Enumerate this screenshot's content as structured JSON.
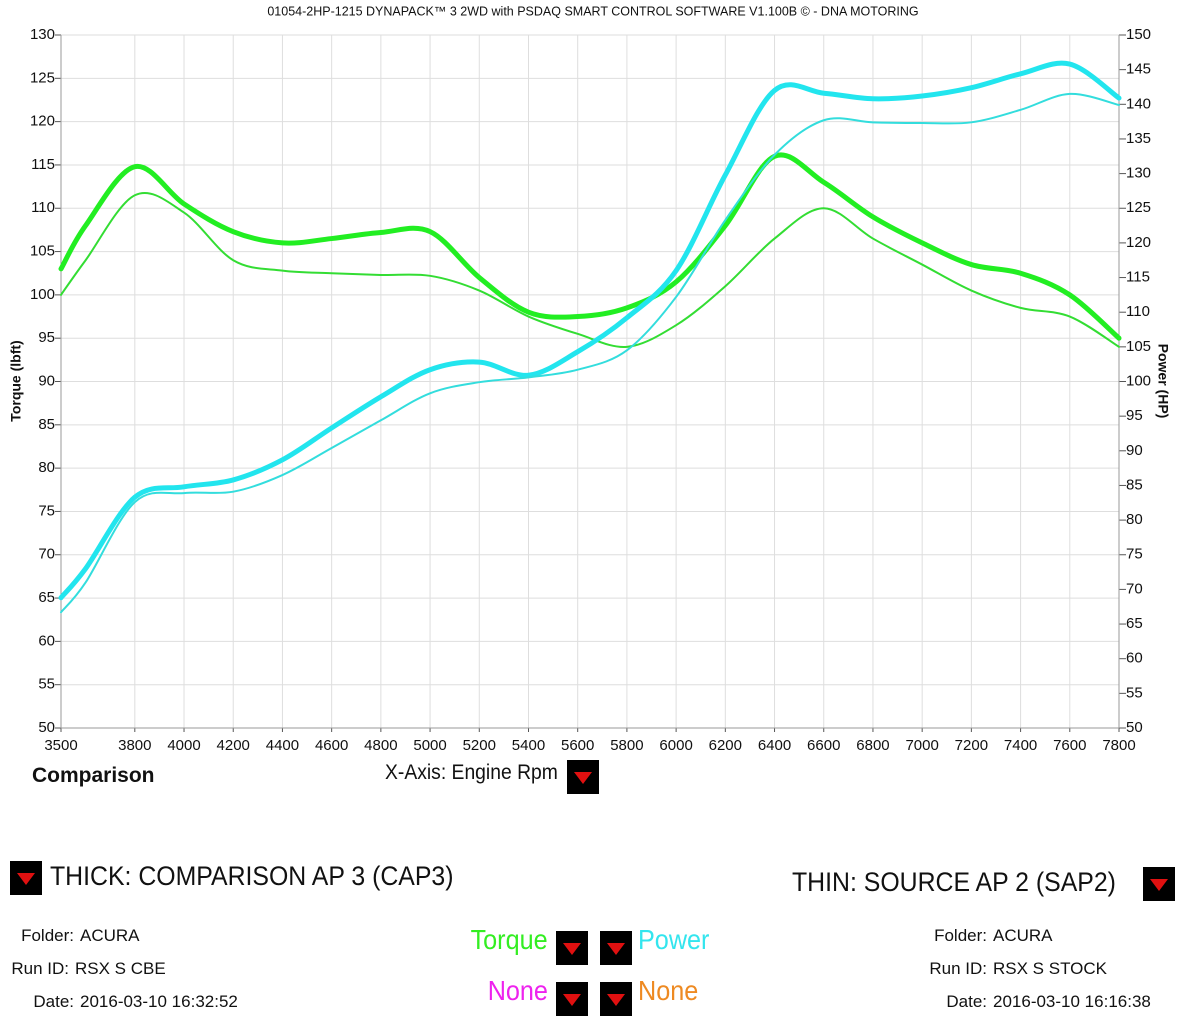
{
  "chart_data": {
    "type": "line",
    "title": "01054-2HP-1215 DYNAPACK™ 3 2WD with PSDAQ SMART CONTROL SOFTWARE V1.100B © - DNA MOTORING",
    "y_label": "Torque (lbft)",
    "y2_label": "Power (HP)",
    "x": [
      3500,
      3600,
      3800,
      4000,
      4200,
      4400,
      4600,
      4800,
      5000,
      5200,
      5400,
      5600,
      5800,
      6000,
      6200,
      6400,
      6600,
      6800,
      7000,
      7200,
      7400,
      7600,
      7800
    ],
    "xlim": [
      3500,
      7800
    ],
    "xticks": [
      3500,
      3800,
      4000,
      4200,
      4400,
      4600,
      4800,
      5000,
      5200,
      5400,
      5600,
      5800,
      6000,
      6200,
      6400,
      6600,
      6800,
      7000,
      7200,
      7400,
      7600,
      7800
    ],
    "ylim": [
      50,
      130
    ],
    "yticks": [
      50,
      55,
      60,
      65,
      70,
      75,
      80,
      85,
      90,
      95,
      100,
      105,
      110,
      115,
      120,
      125,
      130
    ],
    "y2lim": [
      50,
      150
    ],
    "y2ticks": [
      50,
      55,
      60,
      65,
      70,
      75,
      80,
      85,
      90,
      95,
      100,
      105,
      110,
      115,
      120,
      125,
      130,
      135,
      140,
      145,
      150
    ],
    "grid": true,
    "series": [
      {
        "color": "#22ee22",
        "line_width": 5,
        "values": [
          103,
          108,
          114.8,
          110.5,
          107.3,
          106,
          106.5,
          107.2,
          107.3,
          102,
          98,
          97.5,
          98.5,
          101.5,
          108,
          116,
          113,
          109,
          106,
          103.5,
          102.5,
          100,
          95
        ]
      },
      {
        "color": "#33dd33",
        "line_width": 2,
        "values": [
          100,
          104,
          111.5,
          109.5,
          104,
          102.8,
          102.5,
          102.3,
          102.2,
          100.5,
          97.5,
          95.5,
          94,
          96.5,
          101,
          106.5,
          110,
          106.5,
          103.5,
          100.5,
          98.5,
          97.5,
          94
        ]
      },
      {
        "color": "#22e5ee",
        "line_width": 5,
        "axis": "y2",
        "values": [
          68.8,
          73,
          83.3,
          84.8,
          85.8,
          88.7,
          93.3,
          97.8,
          101.7,
          102.8,
          100.9,
          104.3,
          109.2,
          116,
          129.8,
          142,
          141.6,
          140.8,
          141.2,
          142.4,
          144.4,
          145.8,
          140.9
        ]
      },
      {
        "color": "#33dddd",
        "line_width": 2,
        "axis": "y2",
        "values": [
          66.7,
          71,
          82.6,
          83.9,
          84.1,
          86.5,
          90.4,
          94.4,
          98.3,
          99.9,
          100.6,
          101.7,
          104.5,
          112.2,
          123.3,
          132.7,
          137.7,
          137.4,
          137.3,
          137.4,
          139.2,
          141.5,
          139.9
        ]
      }
    ]
  },
  "ui": {
    "mode": "Comparison",
    "x_axis": "X-Axis: Engine Rpm",
    "thick": "THICK: COMPARISON AP 3 (CAP3)",
    "thin": "THIN: SOURCE AP 2 (SAP2)",
    "left_info": [
      {
        "label": "Folder:",
        "value": "ACURA"
      },
      {
        "label": "Run ID:",
        "value": "RSX S CBE"
      },
      {
        "label": "Date:",
        "value": "2016-03-10 16:32:52"
      }
    ],
    "right_info": [
      {
        "label": "Folder:",
        "value": "ACURA"
      },
      {
        "label": "Run ID:",
        "value": "RSX S STOCK"
      },
      {
        "label": "Date:",
        "value": "2016-03-10 16:16:38"
      }
    ],
    "selectors": [
      {
        "left": "Torque",
        "left_color": "#33ee22",
        "right": "Power",
        "right_color": "#33e5ee"
      },
      {
        "left": "None",
        "left_color": "#ee22ee",
        "right": "None",
        "right_color": "#ee8a22"
      }
    ]
  }
}
